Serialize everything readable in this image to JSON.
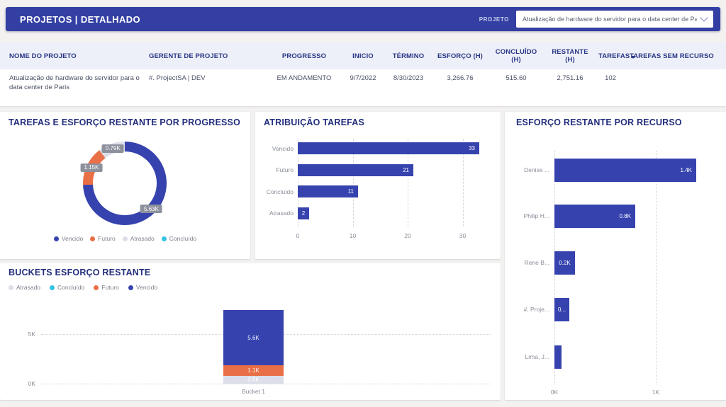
{
  "topbar": {
    "title": "PROJETOS | DETALHADO",
    "filter_label": "PROJETO",
    "filter_value": "Atualização de hardware do servidor para o data center de Paris"
  },
  "colors": {
    "accent_blue": "#333fa3",
    "bar_blue": "#3643ae",
    "orange": "#e96f47",
    "cyan": "#35c3e3",
    "light_gray": "#dcdfe9",
    "title_navy": "#232e7d",
    "axis_gray": "#8a8e99"
  },
  "table": {
    "columns": [
      "NOME DO PROJETO",
      "GERENTE DE PROJETO",
      "PROGRESSO",
      "INICIO",
      "TÉRMINO",
      "ESFORÇO (H)",
      "CONCLUÍDO (H)",
      "RESTANTE (H)",
      "TAREFAS",
      "TAREFAS SEM RECURSO"
    ],
    "sort_column_index": 9,
    "rows": [
      [
        "Atualização de hardware do servidor para o data center de Paris",
        "#. ProjectSA | DEV",
        "EM ANDAMENTO",
        "9/7/2022",
        "8/30/2023",
        "3,266.76",
        "515.60",
        "2,751.16",
        "102",
        ""
      ]
    ]
  },
  "chart_data": [
    {
      "id": "tarefas-esforco-progresso",
      "type": "pie",
      "subtype": "donut",
      "title": "TAREFAS E ESFORÇO RESTANTE POR PROGRESSO",
      "slices": [
        {
          "label": "Vencido",
          "value": 5.63,
          "display": "5.63K",
          "color": "#3643ae"
        },
        {
          "label": "Futuro",
          "value": 1.15,
          "display": "1.15K",
          "color": "#e96f47"
        },
        {
          "label": "Atrasado",
          "value": 0.79,
          "display": "0.79K",
          "color": "#dcdfe9"
        },
        {
          "label": "Concluído",
          "value": 0,
          "display": "",
          "color": "#35c3e3"
        }
      ],
      "legend": [
        "Vencido",
        "Futuro",
        "Atrasado",
        "Concluído"
      ],
      "legend_position": "bottom"
    },
    {
      "id": "atribuicao-tarefas",
      "type": "bar",
      "orientation": "horizontal",
      "title": "ATRIBUIÇÃO TAREFAS",
      "categories": [
        "Vencido",
        "Futuro",
        "Concluído",
        "Atrasado"
      ],
      "values": [
        33,
        21,
        11,
        2
      ],
      "value_labels": [
        "33",
        "21",
        "11",
        "2"
      ],
      "xlim": [
        0,
        35
      ],
      "ticks": [
        0,
        10,
        20,
        30
      ],
      "tick_labels": [
        "0",
        "10",
        "20",
        "30"
      ],
      "bar_color": "#3643ae",
      "grid": "dashed-vertical"
    },
    {
      "id": "esforco-restante-recurso",
      "type": "bar",
      "orientation": "horizontal",
      "title": "ESFORÇO RESTANTE POR RECURSO",
      "categories": [
        "Denise ...",
        "Philip H...",
        "Rene B...",
        "#. Proje...",
        "Lima, J..."
      ],
      "values": [
        1400,
        800,
        200,
        150,
        70
      ],
      "value_labels": [
        "1.4K",
        "0.8K",
        "0.2K",
        "0...",
        ""
      ],
      "xlim": [
        0,
        1600
      ],
      "ticks": [
        0,
        1000
      ],
      "tick_labels": [
        "0K",
        "1K"
      ],
      "bar_color": "#3643ae",
      "grid": "dotted-vertical"
    },
    {
      "id": "buckets-esforco-restante",
      "type": "bar",
      "subtype": "stacked-vertical",
      "title": "BUCKETS ESFORÇO RESTANTE",
      "categories": [
        "Bucket 1"
      ],
      "series": [
        {
          "name": "Atrasado",
          "color": "#dcdfe9",
          "values": [
            800
          ],
          "display": [
            "0.8K"
          ]
        },
        {
          "name": "Concluído",
          "color": "#35c3e3",
          "values": [
            0
          ],
          "display": [
            ""
          ]
        },
        {
          "name": "Futuro",
          "color": "#e96f47",
          "values": [
            1100
          ],
          "display": [
            "1.1K"
          ]
        },
        {
          "name": "Vencido",
          "color": "#3643ae",
          "values": [
            5600
          ],
          "display": [
            "5.6K"
          ]
        }
      ],
      "legend": [
        "Atrasado",
        "Concluído",
        "Futuro",
        "Vencido"
      ],
      "legend_position": "top",
      "yticks": [
        0,
        5000
      ],
      "ytick_labels": [
        "0K",
        "5K"
      ],
      "ylim": [
        0,
        7600
      ]
    }
  ]
}
